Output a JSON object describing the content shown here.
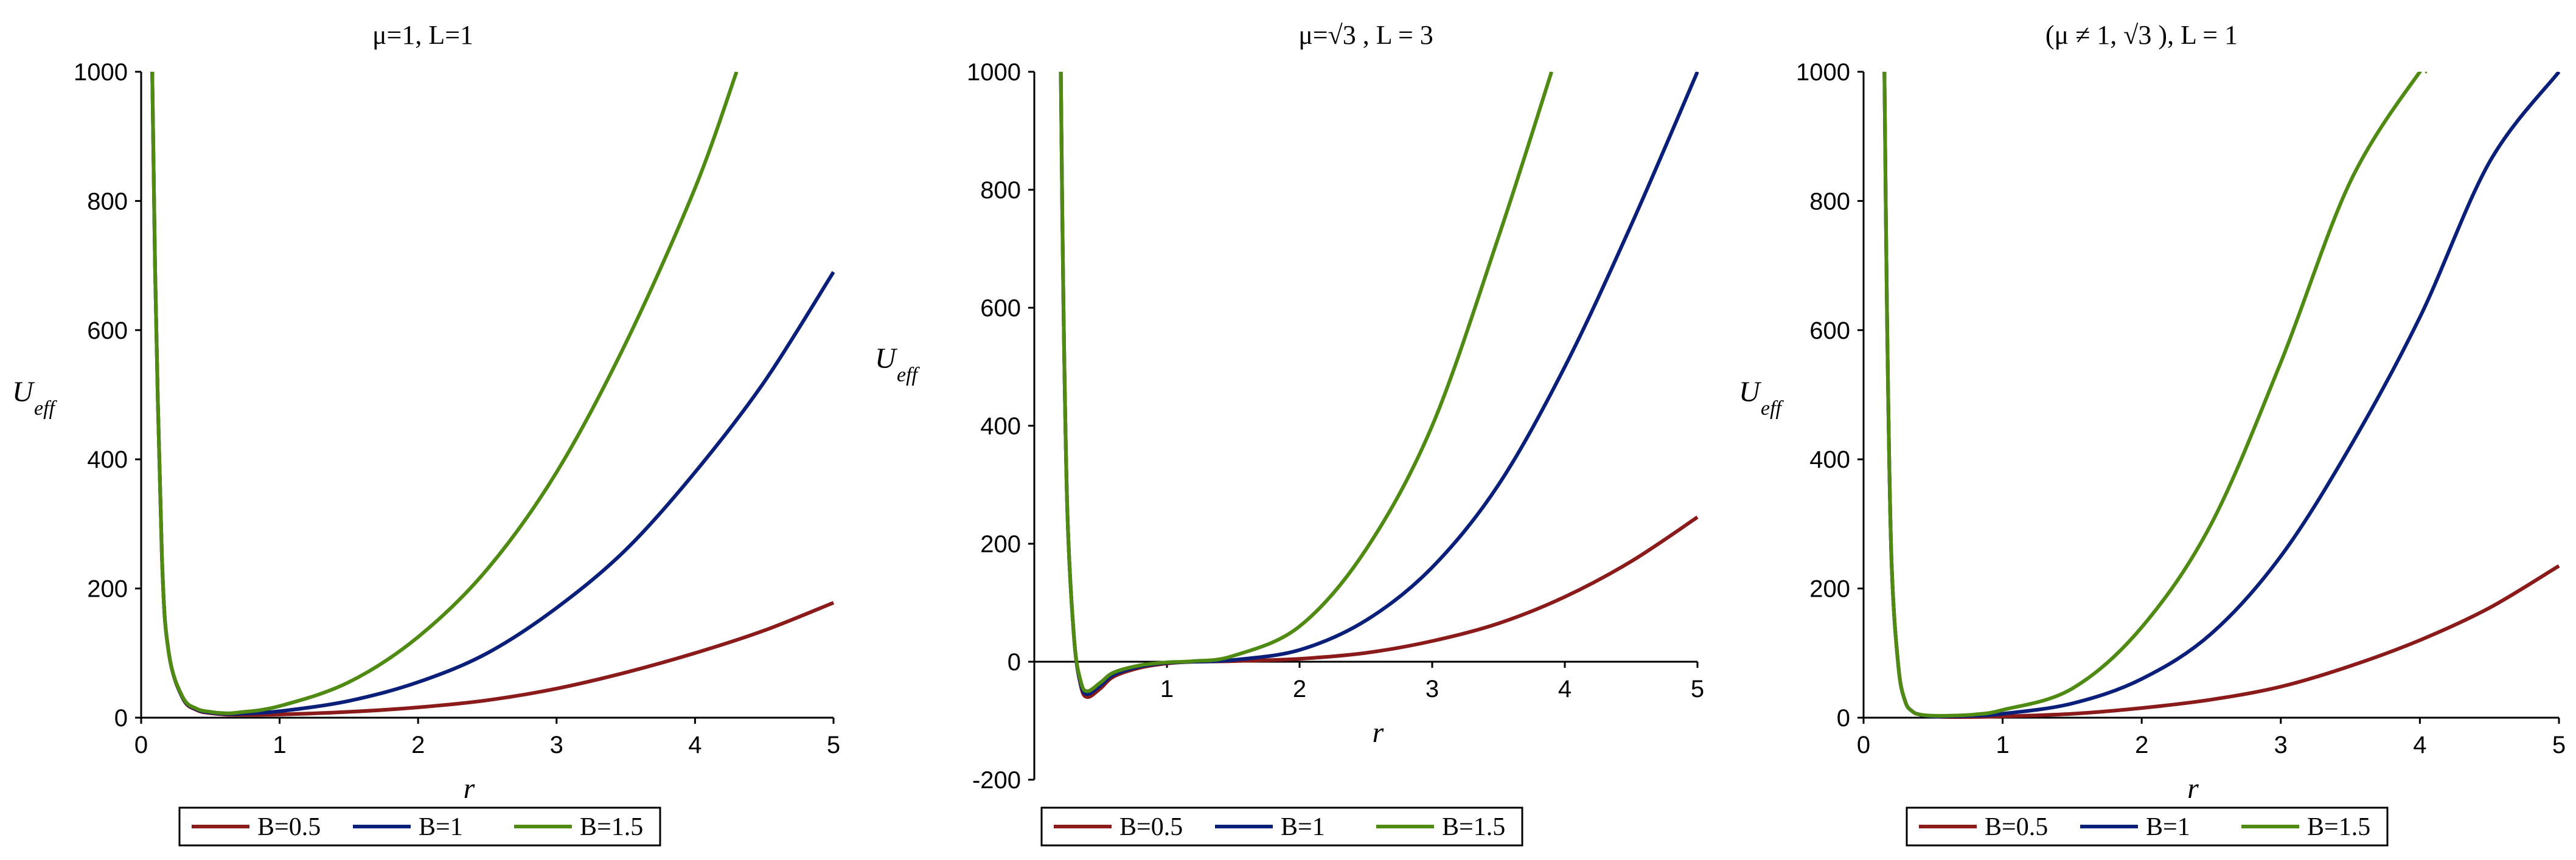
{
  "colors": {
    "B=0.5": "#8b1a1a",
    "B=1": "#0a1f7a",
    "B=1.5": "#4f8a12"
  },
  "chart_data": [
    {
      "type": "line",
      "title": "μ=1, L=1",
      "xlabel": "r",
      "ylabel": "U",
      "ylabel_sub": "eff",
      "xlim": [
        0,
        5
      ],
      "ylim": [
        0,
        1000
      ],
      "xticks": [
        0,
        1,
        2,
        3,
        4,
        5
      ],
      "yticks": [
        0,
        200,
        400,
        600,
        800,
        1000
      ],
      "legend_position": "bottom",
      "legend": [
        "B=0.5",
        "B=1",
        "B=1.5"
      ],
      "series": [
        {
          "name": "B=0.5",
          "x": [
            0.08,
            0.1,
            0.15,
            0.2,
            0.3,
            0.4,
            0.5,
            0.6,
            0.7,
            1,
            1.5,
            2,
            2.5,
            3,
            3.5,
            4,
            4.5,
            5
          ],
          "values": [
            1000,
            700,
            250,
            100,
            30,
            12,
            7,
            5,
            4.5,
            5,
            9,
            16,
            27,
            45,
            70,
            100,
            135,
            178
          ]
        },
        {
          "name": "B=1",
          "x": [
            0.08,
            0.1,
            0.15,
            0.2,
            0.3,
            0.4,
            0.5,
            0.6,
            0.7,
            1,
            1.5,
            2,
            2.5,
            3,
            3.5,
            4,
            4.5,
            5
          ],
          "values": [
            1000,
            700,
            250,
            100,
            31,
            13,
            8,
            6,
            6,
            10,
            26,
            55,
            100,
            170,
            260,
            380,
            520,
            690
          ]
        },
        {
          "name": "B=1.5",
          "x": [
            0.08,
            0.1,
            0.15,
            0.2,
            0.3,
            0.4,
            0.5,
            0.6,
            0.7,
            1,
            1.5,
            2,
            2.5,
            3,
            3.5,
            4,
            4.3
          ],
          "values": [
            1000,
            700,
            250,
            100,
            32,
            14,
            9,
            7,
            8,
            18,
            55,
            125,
            230,
            380,
            580,
            820,
            1000
          ]
        }
      ]
    },
    {
      "type": "line",
      "title": "μ=√3 , L = 3",
      "xlabel": "r",
      "ylabel": "U",
      "ylabel_sub": "eff",
      "xlim": [
        0,
        5
      ],
      "ylim": [
        -200,
        1000
      ],
      "xticks": [
        1,
        2,
        3,
        4,
        5
      ],
      "yticks": [
        -200,
        0,
        200,
        400,
        600,
        800,
        1000
      ],
      "legend_position": "bottom",
      "legend": [
        "B=0.5",
        "B=1",
        "B=1.5"
      ],
      "series": [
        {
          "name": "B=0.5",
          "x": [
            0.2,
            0.22,
            0.25,
            0.3,
            0.35,
            0.4,
            0.5,
            0.6,
            0.8,
            1,
            1.2,
            1.5,
            2,
            2.5,
            3,
            3.5,
            4,
            4.5,
            5
          ],
          "values": [
            1000,
            600,
            250,
            40,
            -40,
            -60,
            -45,
            -25,
            -10,
            -3,
            0,
            1,
            5,
            15,
            35,
            65,
            110,
            170,
            245
          ]
        },
        {
          "name": "B=1",
          "x": [
            0.2,
            0.22,
            0.25,
            0.3,
            0.35,
            0.4,
            0.5,
            0.6,
            0.8,
            1,
            1.2,
            1.5,
            2,
            2.5,
            3,
            3.5,
            4,
            4.5,
            5
          ],
          "values": [
            1000,
            600,
            250,
            40,
            -37,
            -55,
            -40,
            -22,
            -8,
            -2,
            0,
            3,
            20,
            70,
            160,
            300,
            500,
            740,
            1000
          ]
        },
        {
          "name": "B=1.5",
          "x": [
            0.2,
            0.22,
            0.25,
            0.3,
            0.35,
            0.4,
            0.5,
            0.6,
            0.8,
            1,
            1.2,
            1.5,
            2,
            2.5,
            3,
            3.5,
            3.9
          ],
          "values": [
            1000,
            600,
            250,
            40,
            -33,
            -50,
            -35,
            -18,
            -6,
            -1,
            1,
            10,
            60,
            190,
            400,
            720,
            1000
          ]
        }
      ]
    },
    {
      "type": "line",
      "title": "(μ ≠ 1, √3 ), L = 1",
      "xlabel": "r",
      "ylabel": "U",
      "ylabel_sub": "eff",
      "xlim": [
        0,
        5
      ],
      "ylim": [
        0,
        1000
      ],
      "xticks": [
        0,
        1,
        2,
        3,
        4,
        5
      ],
      "yticks": [
        0,
        200,
        400,
        600,
        800,
        1000
      ],
      "legend_position": "bottom",
      "legend": [
        "B=0.5",
        "B=1",
        "B=1.5"
      ],
      "series": [
        {
          "name": "B=0.5",
          "x": [
            0.15,
            0.17,
            0.2,
            0.25,
            0.3,
            0.35,
            0.4,
            0.5,
            0.6,
            0.8,
            1,
            1.5,
            2,
            2.5,
            3,
            3.5,
            4,
            4.5,
            5
          ],
          "values": [
            1000,
            600,
            250,
            80,
            25,
            10,
            5,
            2,
            1,
            1,
            2,
            6,
            15,
            28,
            48,
            80,
            120,
            170,
            235
          ]
        },
        {
          "name": "B=1",
          "x": [
            0.15,
            0.17,
            0.2,
            0.25,
            0.3,
            0.35,
            0.4,
            0.5,
            0.6,
            0.8,
            1,
            1.5,
            2,
            2.5,
            3,
            3.5,
            4,
            4.5,
            5
          ],
          "values": [
            1000,
            600,
            250,
            80,
            25,
            10,
            5,
            2,
            2,
            3,
            6,
            22,
            60,
            130,
            250,
            420,
            620,
            860,
            1000
          ]
        },
        {
          "name": "B=1.5",
          "x": [
            0.15,
            0.17,
            0.2,
            0.25,
            0.3,
            0.35,
            0.4,
            0.5,
            0.6,
            0.8,
            1,
            1.5,
            2,
            2.5,
            3,
            3.5,
            4,
            4.05
          ],
          "values": [
            1000,
            600,
            250,
            80,
            25,
            10,
            5,
            3,
            3,
            5,
            12,
            45,
            140,
            300,
            550,
            830,
            1000,
            1000
          ]
        }
      ]
    }
  ]
}
